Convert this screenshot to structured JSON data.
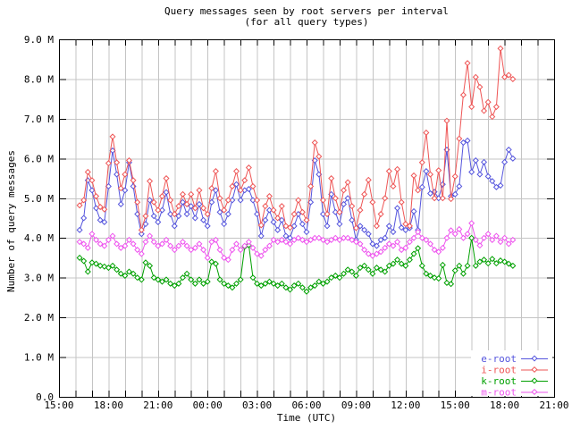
{
  "chart_data": {
    "type": "line",
    "title": "Query messages seen by root servers per interval",
    "subtitle": "(for all query types)",
    "xlabel": "Time (UTC)",
    "ylabel": "Number of query messages",
    "grid": true,
    "legend_position": "bottom-right-inside",
    "marker": "open-diamond",
    "colors": {
      "background": "#ffffff",
      "grid": "#c4c4c4",
      "axis": "#000000"
    },
    "x_axis": {
      "span_hours": 30,
      "grid_every_hours": 1,
      "label_every_hours": 3,
      "tick_labels": [
        "15:00",
        "18:00",
        "21:00",
        "00:00",
        "03:00",
        "06:00",
        "09:00",
        "12:00",
        "15:00",
        "18:00",
        "21:00"
      ]
    },
    "y_axis": {
      "unit": "millions of query messages",
      "min_m": 0,
      "max_m": 9,
      "grid_every_m": 1,
      "tick_labels": [
        "0.0",
        "1.0 M",
        "2.0 M",
        "3.0 M",
        "4.0 M",
        "5.0 M",
        "6.0 M",
        "7.0 M",
        "8.0 M",
        "9.0 M"
      ]
    },
    "start_hour_offset": 1.25,
    "interval_hours": 0.25,
    "series": [
      {
        "name": "e-root",
        "color": "#5555dd",
        "values": [
          4.2,
          4.5,
          5.45,
          5.2,
          4.75,
          4.45,
          4.4,
          5.3,
          6.2,
          5.6,
          4.85,
          5.2,
          5.9,
          5.3,
          4.6,
          4.1,
          4.35,
          4.95,
          4.55,
          4.4,
          4.7,
          5.15,
          4.6,
          4.3,
          4.55,
          4.9,
          4.6,
          4.8,
          4.5,
          4.85,
          4.45,
          4.3,
          4.9,
          5.2,
          4.65,
          4.35,
          4.6,
          4.95,
          5.35,
          4.95,
          5.2,
          5.23,
          4.95,
          4.6,
          4.05,
          4.45,
          4.7,
          4.4,
          4.2,
          4.45,
          4.05,
          4.0,
          4.3,
          4.6,
          4.35,
          4.15,
          4.9,
          5.95,
          5.6,
          4.6,
          4.3,
          5.1,
          4.65,
          4.35,
          4.85,
          5.0,
          4.45,
          3.95,
          4.3,
          4.2,
          4.1,
          3.85,
          3.8,
          3.95,
          4.0,
          4.3,
          4.15,
          4.75,
          4.26,
          4.2,
          4.25,
          4.67,
          4.2,
          5.28,
          5.68,
          5.12,
          5.16,
          5.0,
          5.35,
          6.22,
          5.05,
          5.1,
          5.3,
          6.4,
          6.45,
          5.66,
          5.95,
          5.6,
          5.91,
          5.55,
          5.43,
          5.28,
          5.32,
          5.91,
          6.22,
          6.0
        ]
      },
      {
        "name": "i-root",
        "color": "#ee5555",
        "values": [
          4.82,
          4.95,
          5.66,
          5.45,
          5.05,
          4.78,
          4.72,
          5.88,
          6.55,
          5.9,
          5.25,
          5.6,
          5.95,
          5.45,
          4.9,
          4.2,
          4.55,
          5.43,
          4.9,
          4.7,
          5.05,
          5.5,
          4.95,
          4.6,
          4.8,
          5.1,
          4.85,
          5.1,
          4.75,
          5.2,
          4.75,
          4.6,
          5.25,
          5.68,
          5.0,
          4.7,
          4.95,
          5.3,
          5.68,
          5.2,
          5.45,
          5.77,
          5.3,
          4.95,
          4.32,
          4.8,
          5.05,
          4.7,
          4.5,
          4.8,
          4.3,
          4.26,
          4.6,
          4.95,
          4.65,
          4.45,
          5.3,
          6.4,
          6.05,
          4.95,
          4.6,
          5.5,
          5.0,
          4.65,
          5.2,
          5.4,
          4.8,
          4.25,
          4.7,
          5.1,
          5.46,
          4.9,
          4.3,
          4.6,
          5.0,
          5.68,
          5.3,
          5.73,
          4.9,
          4.35,
          4.3,
          5.57,
          5.2,
          5.9,
          6.65,
          5.6,
          5.0,
          5.7,
          5.0,
          6.95,
          4.98,
          5.55,
          6.5,
          7.6,
          8.4,
          7.3,
          8.05,
          7.8,
          7.2,
          7.42,
          7.05,
          7.3,
          8.77,
          8.05,
          8.1,
          8.0
        ]
      },
      {
        "name": "k-root",
        "color": "#00a000",
        "values": [
          3.5,
          3.42,
          3.15,
          3.38,
          3.35,
          3.3,
          3.28,
          3.25,
          3.3,
          3.2,
          3.1,
          3.05,
          3.15,
          3.1,
          3.0,
          2.95,
          3.38,
          3.3,
          3.0,
          2.95,
          2.9,
          2.95,
          2.85,
          2.8,
          2.85,
          3.0,
          3.1,
          2.95,
          2.85,
          2.95,
          2.85,
          2.9,
          3.4,
          3.35,
          2.95,
          2.85,
          2.8,
          2.75,
          2.85,
          2.95,
          3.78,
          3.82,
          3.0,
          2.85,
          2.8,
          2.85,
          2.9,
          2.85,
          2.8,
          2.85,
          2.75,
          2.7,
          2.8,
          2.85,
          2.75,
          2.65,
          2.75,
          2.8,
          2.9,
          2.85,
          2.9,
          3.0,
          3.05,
          3.0,
          3.1,
          3.2,
          3.15,
          3.05,
          3.25,
          3.3,
          3.2,
          3.1,
          3.25,
          3.2,
          3.15,
          3.3,
          3.35,
          3.45,
          3.35,
          3.3,
          3.45,
          3.6,
          3.74,
          3.3,
          3.1,
          3.05,
          3.0,
          2.98,
          3.32,
          2.87,
          2.84,
          3.18,
          3.3,
          3.1,
          3.3,
          4.0,
          3.3,
          3.4,
          3.45,
          3.36,
          3.47,
          3.36,
          3.43,
          3.4,
          3.35,
          3.3
        ]
      },
      {
        "name": "m-root",
        "color": "#ee55ee",
        "values": [
          3.9,
          3.85,
          3.75,
          4.1,
          3.95,
          3.85,
          3.8,
          3.95,
          4.05,
          3.85,
          3.75,
          3.8,
          3.95,
          3.85,
          3.7,
          3.6,
          3.9,
          4.05,
          3.9,
          3.8,
          3.85,
          3.95,
          3.8,
          3.7,
          3.8,
          3.9,
          3.8,
          3.7,
          3.75,
          3.85,
          3.7,
          3.5,
          3.9,
          3.95,
          3.7,
          3.5,
          3.45,
          3.7,
          3.85,
          3.7,
          3.8,
          3.9,
          3.75,
          3.6,
          3.55,
          3.7,
          3.8,
          3.95,
          3.9,
          3.95,
          3.9,
          3.85,
          3.95,
          4.0,
          3.95,
          3.9,
          3.95,
          4.0,
          4.0,
          3.95,
          3.9,
          3.95,
          4.0,
          3.95,
          4.0,
          4.0,
          3.95,
          3.9,
          3.85,
          3.7,
          3.6,
          3.55,
          3.6,
          3.65,
          3.75,
          3.85,
          3.8,
          3.9,
          3.7,
          3.75,
          3.9,
          4.0,
          4.15,
          4.0,
          3.95,
          3.85,
          3.7,
          3.65,
          3.75,
          4.0,
          4.19,
          4.1,
          4.22,
          4.0,
          4.1,
          4.37,
          3.95,
          3.81,
          4.0,
          4.1,
          3.95,
          4.05,
          3.9,
          4.0,
          3.85,
          3.95
        ]
      }
    ]
  }
}
